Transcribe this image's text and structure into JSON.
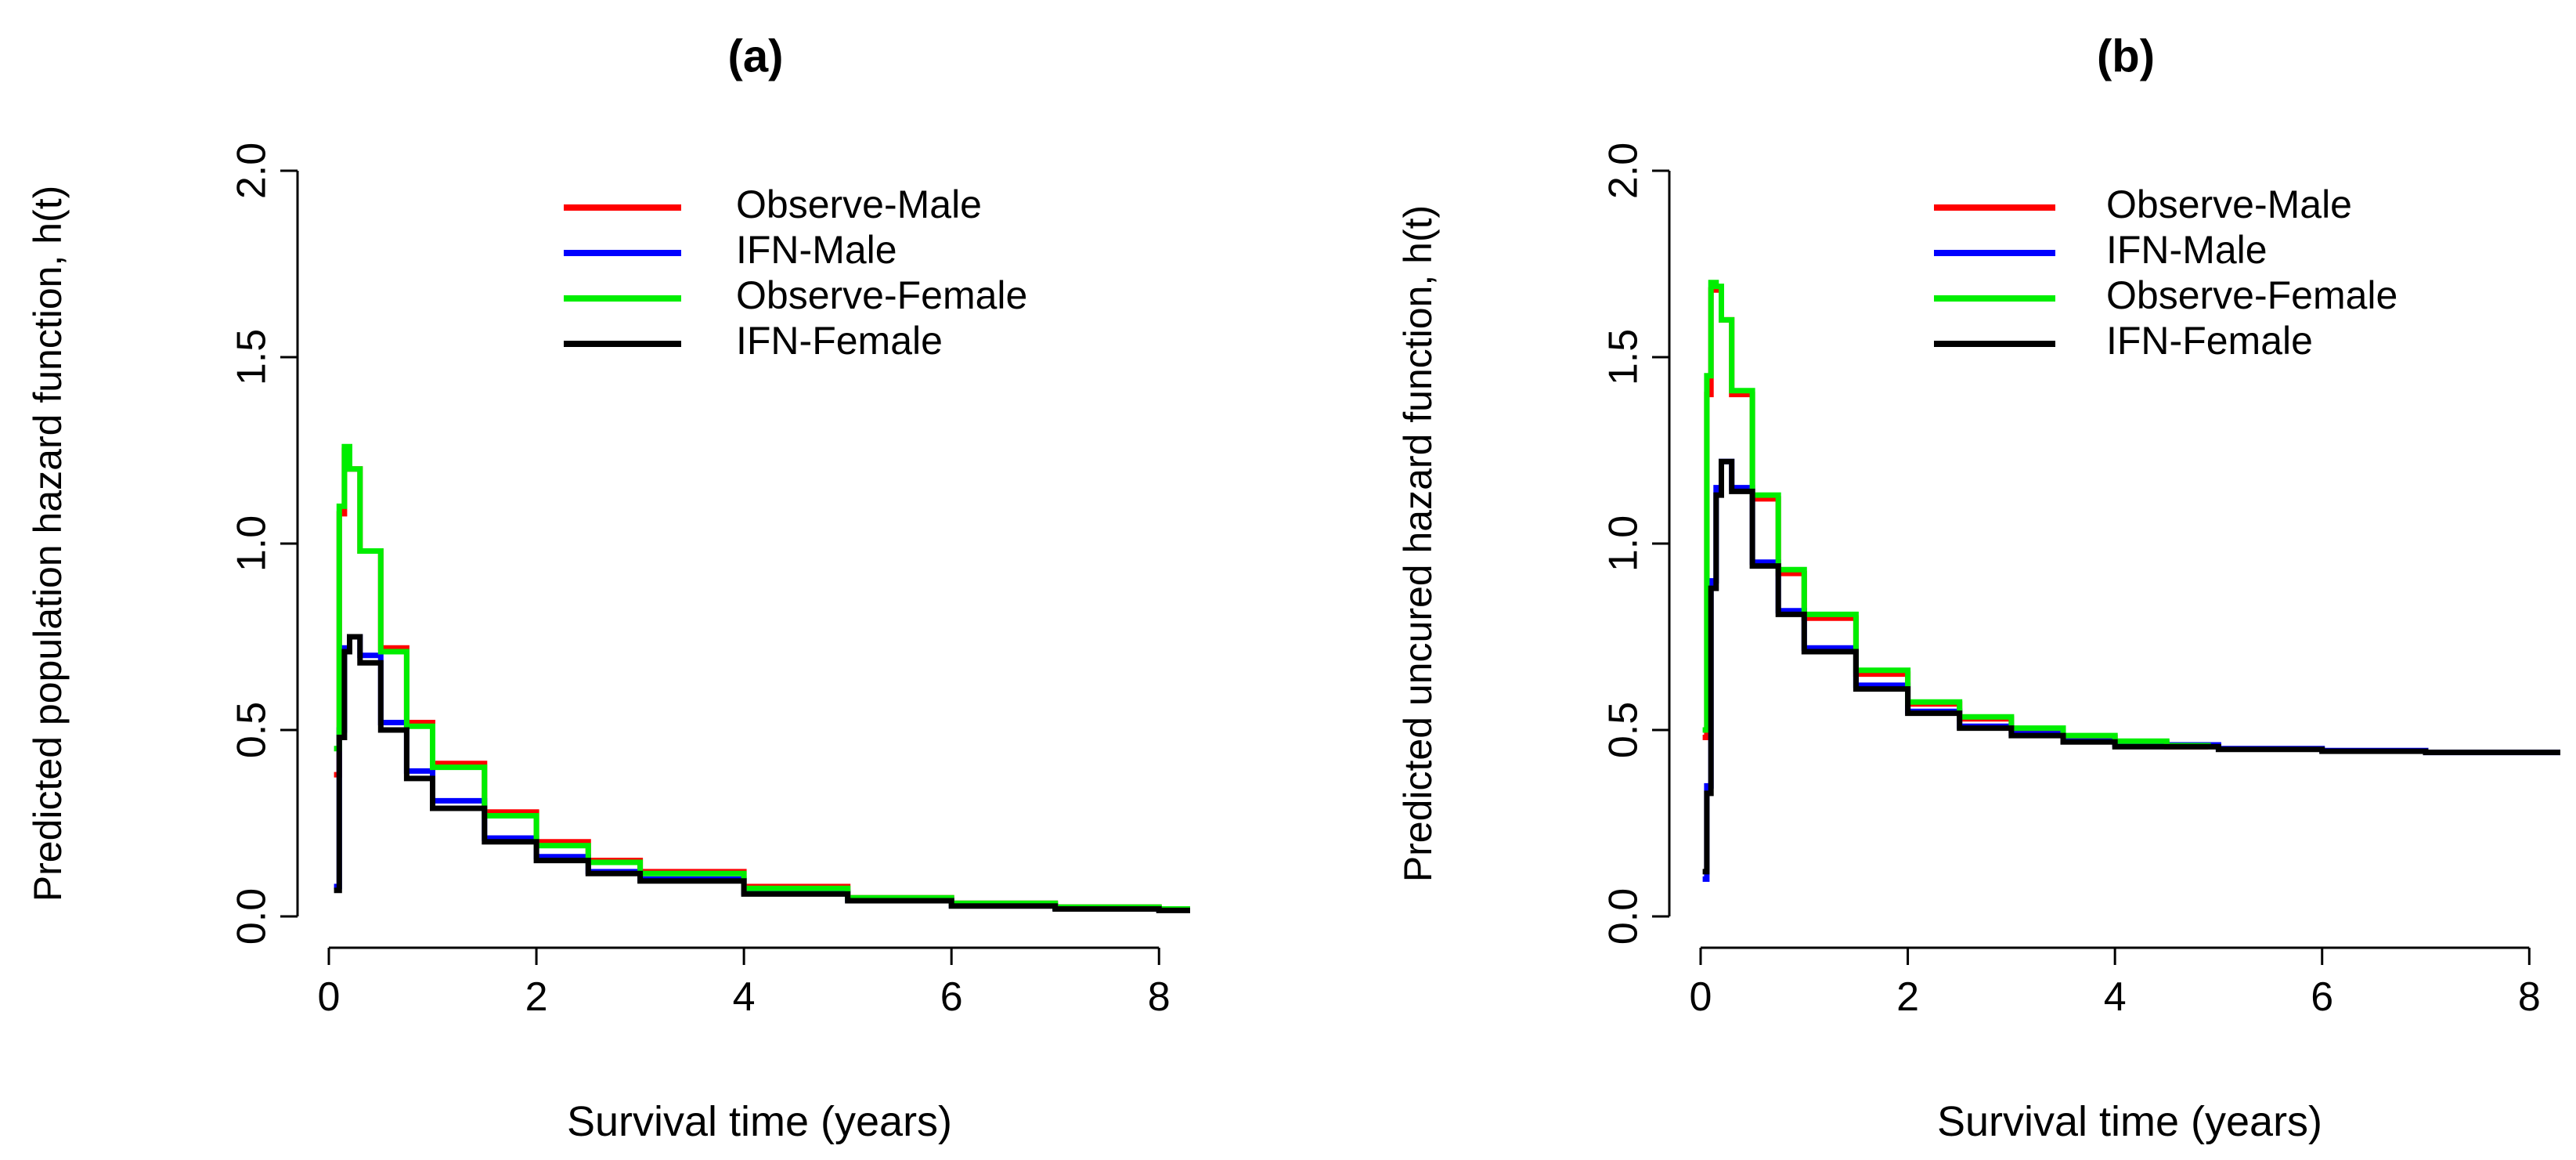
{
  "chart_data": [
    {
      "type": "line",
      "panel": "a",
      "title": "(a)",
      "xlabel": "Survival time (years)",
      "ylabel": "Predicted population hazard function, h(t)",
      "xlim": [
        0,
        8.3
      ],
      "ylim": [
        0,
        2
      ],
      "xticks": [
        0,
        2,
        4,
        6,
        8
      ],
      "xtick_labels": [
        "0",
        "2",
        "4",
        "6",
        "8"
      ],
      "yticks": [
        0,
        0.5,
        1,
        1.5,
        2
      ],
      "ytick_labels": [
        "0.0",
        "0.5",
        "1.0",
        "1.5",
        "2.0"
      ],
      "legend_position": "top-right",
      "x": [
        0.05,
        0.1,
        0.15,
        0.2,
        0.3,
        0.5,
        0.75,
        1,
        1.5,
        2,
        2.5,
        3,
        4,
        5,
        6,
        7,
        8,
        8.3
      ],
      "series": [
        {
          "name": "Observe-Male",
          "color": "#ff0000",
          "values": [
            0.38,
            1.08,
            1.25,
            1.2,
            0.98,
            0.72,
            0.52,
            0.41,
            0.28,
            0.2,
            0.15,
            0.12,
            0.08,
            0.05,
            0.035,
            0.025,
            0.02,
            0.02
          ]
        },
        {
          "name": "IFN-Male",
          "color": "#0000ff",
          "values": [
            0.08,
            0.5,
            0.72,
            0.75,
            0.7,
            0.52,
            0.39,
            0.31,
            0.21,
            0.16,
            0.12,
            0.1,
            0.065,
            0.045,
            0.03,
            0.022,
            0.018,
            0.018
          ]
        },
        {
          "name": "Observe-Female",
          "color": "#00ee00",
          "values": [
            0.45,
            1.1,
            1.26,
            1.2,
            0.98,
            0.71,
            0.51,
            0.4,
            0.27,
            0.19,
            0.145,
            0.115,
            0.075,
            0.05,
            0.035,
            0.025,
            0.02,
            0.02
          ]
        },
        {
          "name": "IFN-Female",
          "color": "#000000",
          "values": [
            0.07,
            0.48,
            0.71,
            0.75,
            0.68,
            0.5,
            0.37,
            0.29,
            0.2,
            0.15,
            0.115,
            0.095,
            0.06,
            0.042,
            0.028,
            0.02,
            0.016,
            0.016
          ]
        }
      ]
    },
    {
      "type": "line",
      "panel": "b",
      "title": "(b)",
      "xlabel": "Survival time (years)",
      "ylabel": "Predicted uncured hazard function, h(t)",
      "xlim": [
        0,
        8.3
      ],
      "ylim": [
        0,
        2
      ],
      "xticks": [
        0,
        2,
        4,
        6,
        8
      ],
      "xtick_labels": [
        "0",
        "2",
        "4",
        "6",
        "8"
      ],
      "yticks": [
        0,
        0.5,
        1,
        1.5,
        2
      ],
      "ytick_labels": [
        "0.0",
        "0.5",
        "1.0",
        "1.5",
        "2.0"
      ],
      "legend_position": "top-right",
      "series": [
        {
          "name": "Observe-Male",
          "color": "#ff0000",
          "x": [
            0.02,
            0.06,
            0.1,
            0.15,
            0.2,
            0.3,
            0.5,
            0.75,
            1,
            1.5,
            2,
            2.5,
            3,
            3.5,
            4,
            4.5,
            4.9
          ],
          "values": [
            0.48,
            1.4,
            1.68,
            1.68,
            1.6,
            1.4,
            1.12,
            0.92,
            0.8,
            0.65,
            0.57,
            0.53,
            0.5,
            0.48,
            0.465,
            0.455,
            0.45
          ]
        },
        {
          "name": "IFN-Male",
          "color": "#0000ff",
          "x": [
            0.02,
            0.06,
            0.1,
            0.15,
            0.2,
            0.3,
            0.5,
            0.75,
            1,
            1.5,
            2,
            2.5,
            3,
            3.5,
            4,
            5,
            6,
            7,
            8,
            8.3
          ],
          "values": [
            0.1,
            0.35,
            0.9,
            1.15,
            1.22,
            1.15,
            0.95,
            0.82,
            0.72,
            0.62,
            0.55,
            0.51,
            0.49,
            0.47,
            0.46,
            0.45,
            0.445,
            0.44,
            0.44,
            0.44
          ]
        },
        {
          "name": "Observe-Female",
          "color": "#00ee00",
          "x": [
            0.02,
            0.06,
            0.1,
            0.15,
            0.2,
            0.3,
            0.5,
            0.75,
            1,
            1.5,
            2,
            2.5,
            3,
            3.5,
            4,
            4.5,
            4.9
          ],
          "values": [
            0.5,
            1.45,
            1.7,
            1.69,
            1.6,
            1.41,
            1.13,
            0.93,
            0.81,
            0.66,
            0.575,
            0.535,
            0.505,
            0.485,
            0.47,
            0.458,
            0.452
          ]
        },
        {
          "name": "IFN-Female",
          "color": "#000000",
          "x": [
            0.02,
            0.06,
            0.1,
            0.15,
            0.2,
            0.3,
            0.5,
            0.75,
            1,
            1.5,
            2,
            2.5,
            3,
            3.5,
            4,
            5,
            6,
            7,
            8,
            8.3
          ],
          "values": [
            0.12,
            0.33,
            0.88,
            1.13,
            1.22,
            1.14,
            0.94,
            0.81,
            0.71,
            0.61,
            0.545,
            0.505,
            0.485,
            0.468,
            0.455,
            0.448,
            0.443,
            0.44,
            0.44,
            0.44
          ]
        }
      ]
    }
  ]
}
